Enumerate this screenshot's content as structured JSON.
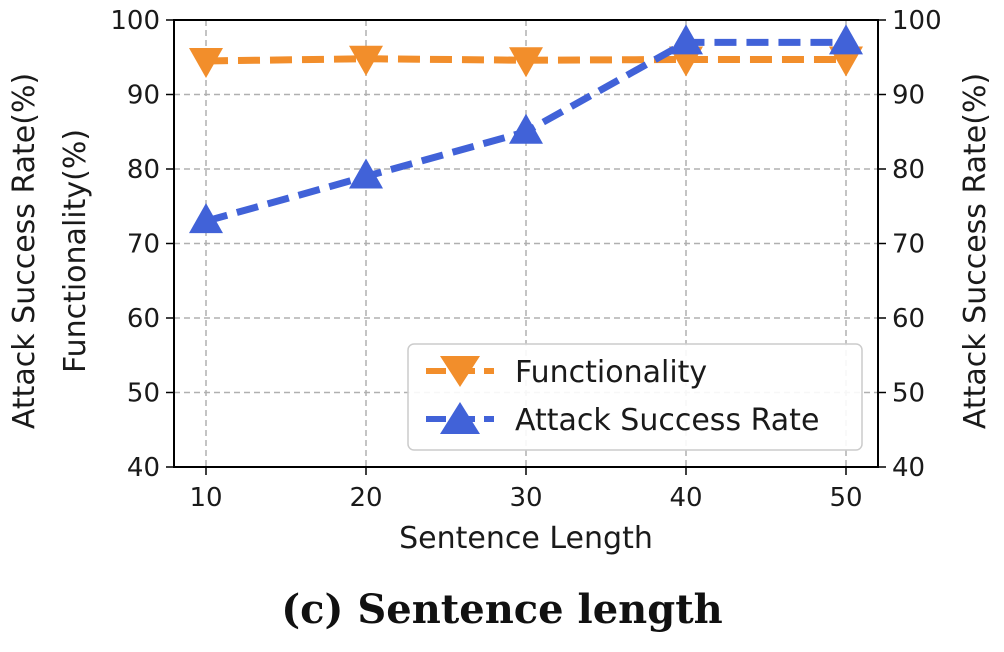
{
  "caption": "(c) Sentence length",
  "chart_data": {
    "type": "line",
    "x": [
      10,
      20,
      30,
      40,
      50
    ],
    "xlabel": "Sentence Length",
    "ylabel_left_line1": "Attack Success Rate(%)",
    "ylabel_left_line2": "Functionality(%)",
    "ylabel_right": "Attack Success Rate(%)",
    "ylim": [
      40,
      100
    ],
    "xlim": [
      8,
      52
    ],
    "xticks": [
      10,
      20,
      30,
      40,
      50
    ],
    "yticks": [
      40,
      50,
      60,
      70,
      80,
      90,
      100
    ],
    "grid": true,
    "legend_position": "lower-right",
    "series": [
      {
        "name": "Functionality",
        "values": [
          94.5,
          94.8,
          94.6,
          94.7,
          94.7
        ],
        "color": "#F28E2B",
        "marker": "triangle-down",
        "linestyle": "dashed"
      },
      {
        "name": "Attack Success Rate",
        "values": [
          73,
          79,
          85,
          97,
          97
        ],
        "color": "#4162D8",
        "marker": "triangle-up",
        "linestyle": "dashed"
      }
    ]
  }
}
